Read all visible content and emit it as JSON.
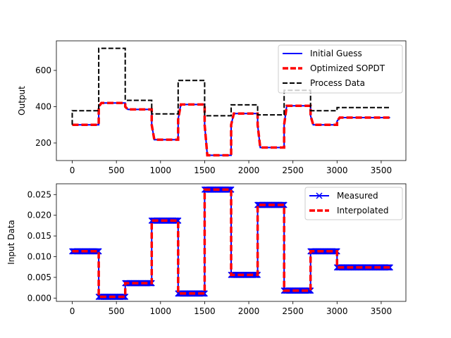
{
  "chart_data": [
    {
      "type": "line",
      "title": "",
      "xlabel": "",
      "ylabel": "Output",
      "xlim": [
        -180,
        3780
      ],
      "ylim": [
        103,
        763
      ],
      "xticks": [
        0,
        500,
        1000,
        1500,
        2000,
        2500,
        3000,
        3500
      ],
      "yticks": [
        200,
        400,
        600
      ],
      "legend_position": "upper right",
      "series": [
        {
          "name": "Initial Guess",
          "color": "#0000ff",
          "style": "solid",
          "marker": "",
          "x": [
            0,
            300,
            300,
            330,
            600,
            600,
            630,
            900,
            900,
            930,
            1200,
            1200,
            1230,
            1500,
            1500,
            1530,
            1800,
            1800,
            1830,
            2100,
            2100,
            2130,
            2400,
            2400,
            2430,
            2700,
            2700,
            2730,
            3000,
            3000,
            3030,
            3600
          ],
          "y": [
            300,
            300,
            400,
            420,
            420,
            400,
            385,
            385,
            300,
            218,
            218,
            330,
            412,
            412,
            300,
            132,
            132,
            300,
            362,
            362,
            300,
            175,
            175,
            300,
            405,
            405,
            350,
            300,
            300,
            320,
            340,
            340
          ]
        },
        {
          "name": "Optimized SOPDT",
          "color": "#ff0000",
          "style": "dashed",
          "marker": "",
          "x": [
            0,
            300,
            300,
            330,
            600,
            600,
            630,
            900,
            900,
            930,
            1200,
            1200,
            1230,
            1500,
            1500,
            1530,
            1800,
            1800,
            1830,
            2100,
            2100,
            2130,
            2400,
            2400,
            2430,
            2700,
            2700,
            2730,
            3000,
            3000,
            3030,
            3600
          ],
          "y": [
            300,
            300,
            400,
            420,
            420,
            400,
            385,
            385,
            300,
            218,
            218,
            330,
            412,
            412,
            300,
            132,
            132,
            300,
            362,
            362,
            300,
            175,
            175,
            300,
            405,
            405,
            350,
            300,
            300,
            320,
            340,
            340
          ]
        },
        {
          "name": "Process Data",
          "color": "#000000",
          "style": "dashed",
          "marker": "",
          "x": [
            0,
            0,
            300,
            300,
            600,
            600,
            900,
            900,
            1200,
            1200,
            1500,
            1500,
            1800,
            1800,
            2100,
            2100,
            2400,
            2400,
            2700,
            2700,
            3000,
            3000,
            3600
          ],
          "y": [
            300,
            378,
            378,
            722,
            722,
            435,
            435,
            360,
            360,
            545,
            545,
            350,
            350,
            410,
            410,
            355,
            355,
            490,
            490,
            378,
            378,
            395,
            395
          ]
        }
      ]
    },
    {
      "type": "line",
      "title": "",
      "xlabel": "",
      "ylabel": "Input Data",
      "xlim": [
        -180,
        3780
      ],
      "ylim": [
        -0.0008,
        0.0276
      ],
      "xticks": [
        0,
        500,
        1000,
        1500,
        2000,
        2500,
        3000,
        3500
      ],
      "yticks": [
        0.0,
        0.005,
        0.01,
        0.015,
        0.02,
        0.025
      ],
      "ytick_labels": [
        "0.000",
        "0.005",
        "0.010",
        "0.015",
        "0.020",
        "0.025"
      ],
      "legend_position": "upper right",
      "series": [
        {
          "name": "Measured",
          "color": "#0000ff",
          "style": "solid",
          "marker": "x",
          "x": [
            0,
            300,
            300,
            600,
            600,
            900,
            900,
            1200,
            1200,
            1500,
            1500,
            1800,
            1800,
            2100,
            2100,
            2400,
            2400,
            2700,
            2700,
            3000,
            3000,
            3600
          ],
          "y": [
            0.0113,
            0.0113,
            0.0003,
            0.0003,
            0.0036,
            0.0036,
            0.0187,
            0.0187,
            0.0011,
            0.0011,
            0.0262,
            0.0262,
            0.0056,
            0.0056,
            0.0225,
            0.0225,
            0.0018,
            0.0018,
            0.0113,
            0.0113,
            0.0074,
            0.0074
          ]
        },
        {
          "name": "Interpolated",
          "color": "#ff0000",
          "style": "dashed",
          "marker": "",
          "x": [
            0,
            300,
            300,
            600,
            600,
            900,
            900,
            1200,
            1200,
            1500,
            1500,
            1800,
            1800,
            2100,
            2100,
            2400,
            2400,
            2700,
            2700,
            3000,
            3000,
            3600
          ],
          "y": [
            0.0113,
            0.0113,
            0.0003,
            0.0003,
            0.0036,
            0.0036,
            0.0187,
            0.0187,
            0.0011,
            0.0011,
            0.0262,
            0.0262,
            0.0056,
            0.0056,
            0.0225,
            0.0225,
            0.0018,
            0.0018,
            0.0113,
            0.0113,
            0.0074,
            0.0074
          ]
        }
      ]
    }
  ]
}
